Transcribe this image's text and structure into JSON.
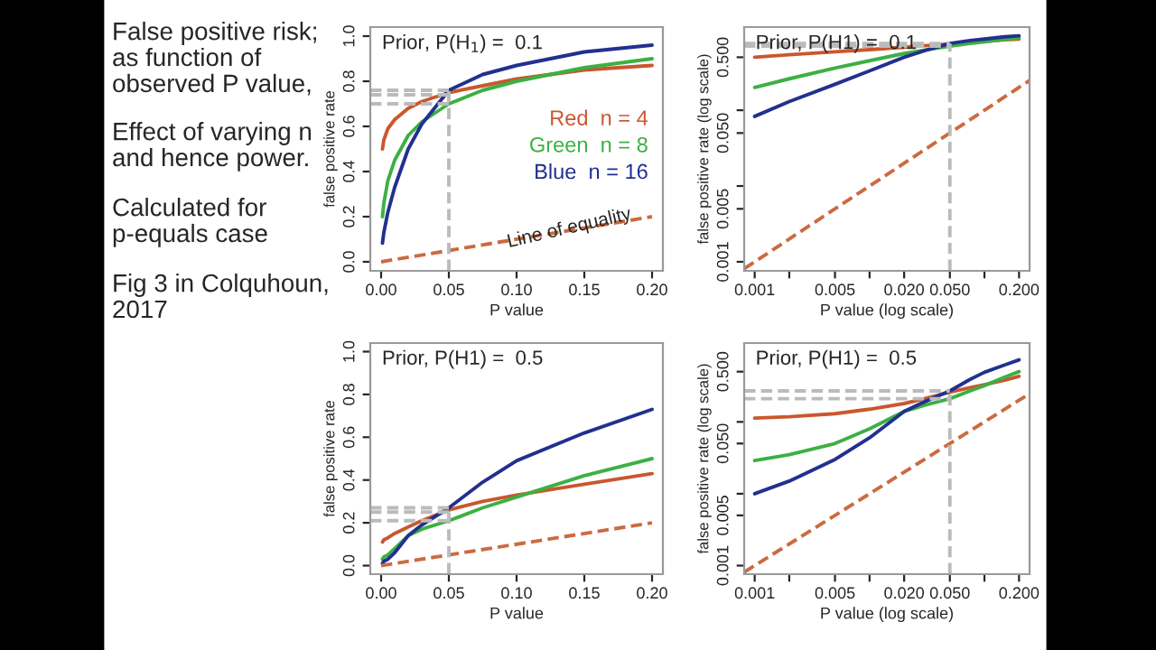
{
  "chart_data": [
    {
      "type": "other",
      "annotations": [
        "False positive risk;\nas function of\nobserved P value,",
        "Effect of varying n\nand hence power.",
        "Calculated for\np-equals case",
        "Fig 3 in Colquhoun,\n2017"
      ]
    },
    {
      "type": "line",
      "title": "Prior, P(H$_{1}$) =  0.1",
      "xlabel": "P value",
      "ylabel": "false positive rate",
      "legend": "center right",
      "xlim": [
        -0.008,
        0.208
      ],
      "ylim": [
        -0.04,
        1.04
      ],
      "xticks": [
        {
          "value": 0,
          "label": "0.00"
        },
        {
          "value": 0.05,
          "label": "0.05"
        },
        {
          "value": 0.1,
          "label": "0.10"
        },
        {
          "value": 0.15,
          "label": "0.15"
        },
        {
          "value": 0.2,
          "label": "0.20"
        }
      ],
      "yticks": [
        {
          "value": 0,
          "label": "0.0"
        },
        0.2,
        0.4,
        0.6,
        0.8,
        {
          "value": 1,
          "label": "1.0"
        }
      ],
      "annotations": [
        "Line of equality"
      ],
      "series": [
        {
          "name": "Red  n = 4",
          "color": "#c9572e",
          "line_style": "solid",
          "x": [
            0.001,
            0.002,
            0.005,
            0.01,
            0.02,
            0.03,
            0.05,
            0.075,
            0.1,
            0.15,
            0.2
          ],
          "values": [
            0.5,
            0.54,
            0.59,
            0.63,
            0.68,
            0.71,
            0.75,
            0.78,
            0.81,
            0.85,
            0.87
          ]
        },
        {
          "name": "Green  n = 8",
          "color": "#3cb043",
          "line_style": "solid",
          "x": [
            0.001,
            0.002,
            0.005,
            0.01,
            0.02,
            0.03,
            0.05,
            0.075,
            0.1,
            0.15,
            0.2
          ],
          "values": [
            0.2,
            0.26,
            0.36,
            0.45,
            0.56,
            0.62,
            0.7,
            0.76,
            0.8,
            0.86,
            0.9
          ]
        },
        {
          "name": "Blue  n = 16",
          "color": "#22308f",
          "line_style": "solid",
          "x": [
            0.001,
            0.002,
            0.005,
            0.01,
            0.02,
            0.03,
            0.05,
            0.075,
            0.1,
            0.15,
            0.2
          ],
          "values": [
            0.083,
            0.13,
            0.22,
            0.33,
            0.5,
            0.61,
            0.76,
            0.83,
            0.87,
            0.93,
            0.96
          ]
        },
        {
          "color": "#cc6a40",
          "line_style": "dashed",
          "x": [
            0,
            0.2
          ],
          "values": [
            0,
            0.2
          ]
        },
        {
          "color": "#bbbbbb",
          "line_style": "dashed",
          "x": [
            -0.008,
            0.05
          ],
          "values": [
            0.76,
            0.76
          ]
        },
        {
          "color": "#bbbbbb",
          "line_style": "dashed",
          "x": [
            -0.008,
            0.05
          ],
          "values": [
            0.74,
            0.74
          ]
        },
        {
          "color": "#bbbbbb",
          "line_style": "dashed",
          "x": [
            -0.008,
            0.05
          ],
          "values": [
            0.7,
            0.7
          ]
        },
        {
          "color": "#bbbbbb",
          "line_style": "dashed",
          "x": [
            0.05,
            0.05
          ],
          "values": [
            -0.04,
            0.76
          ]
        }
      ]
    },
    {
      "type": "line",
      "title": "Prior, P(H1) =  0.1",
      "xlabel": "P value (log scale)",
      "ylabel": "false positive rate (log scale)",
      "log": "xy",
      "xlim": [
        0.00081,
        0.247
      ],
      "ylim": [
        0.00076,
        1.25
      ],
      "xticks": [
        {
          "value": 0.001,
          "label": "0.001"
        },
        {
          "value": 0.002,
          "label": null
        },
        {
          "value": 0.005,
          "label": "0.005"
        },
        {
          "value": 0.01,
          "label": null
        },
        {
          "value": 0.02,
          "label": "0.020"
        },
        {
          "value": 0.05,
          "label": "0.050"
        },
        {
          "value": 0.1,
          "label": null
        },
        {
          "value": 0.2,
          "label": "0.200"
        }
      ],
      "yticks": [
        {
          "value": 0.001,
          "label": "0.001"
        },
        {
          "value": 0.005,
          "label": "0.005"
        },
        {
          "value": 0.01,
          "label": null
        },
        {
          "value": 0.05,
          "label": "0.050"
        },
        {
          "value": 0.1,
          "label": null
        },
        {
          "value": 0.5,
          "label": "0.500"
        }
      ],
      "series": [
        {
          "color": "#c9572e",
          "line_style": "solid",
          "x": [
            0.001,
            0.002,
            0.005,
            0.01,
            0.02,
            0.03,
            0.05,
            0.075,
            0.1,
            0.15,
            0.2
          ],
          "values": [
            0.5,
            0.54,
            0.59,
            0.63,
            0.68,
            0.71,
            0.75,
            0.78,
            0.81,
            0.85,
            0.87
          ]
        },
        {
          "color": "#3cb043",
          "line_style": "solid",
          "x": [
            0.001,
            0.002,
            0.005,
            0.01,
            0.02,
            0.03,
            0.05,
            0.075,
            0.1,
            0.15,
            0.2
          ],
          "values": [
            0.2,
            0.26,
            0.36,
            0.45,
            0.56,
            0.62,
            0.7,
            0.76,
            0.8,
            0.86,
            0.9
          ]
        },
        {
          "color": "#22308f",
          "line_style": "solid",
          "x": [
            0.001,
            0.002,
            0.005,
            0.01,
            0.02,
            0.03,
            0.05,
            0.075,
            0.1,
            0.15,
            0.2
          ],
          "values": [
            0.083,
            0.13,
            0.22,
            0.33,
            0.5,
            0.61,
            0.76,
            0.83,
            0.87,
            0.93,
            0.96
          ]
        },
        {
          "color": "#cc6a40",
          "line_style": "dashed",
          "x": [
            0.00081,
            0.247
          ],
          "values": [
            0.00081,
            0.247
          ]
        },
        {
          "color": "#bbbbbb",
          "line_style": "dashed",
          "x": [
            0.00081,
            0.05
          ],
          "values": [
            0.76,
            0.76
          ]
        },
        {
          "color": "#bbbbbb",
          "line_style": "dashed",
          "x": [
            0.00081,
            0.05
          ],
          "values": [
            0.7,
            0.7
          ]
        },
        {
          "color": "#bbbbbb",
          "line_style": "dashed",
          "x": [
            0.05,
            0.05
          ],
          "values": [
            0.00076,
            0.76
          ]
        }
      ]
    },
    {
      "type": "line",
      "title": "Prior, P(H1) =  0.5",
      "xlabel": "P value",
      "ylabel": "false positive rate",
      "xlim": [
        -0.008,
        0.208
      ],
      "ylim": [
        -0.04,
        1.04
      ],
      "xticks": [
        {
          "value": 0,
          "label": "0.00"
        },
        {
          "value": 0.05,
          "label": "0.05"
        },
        {
          "value": 0.1,
          "label": "0.10"
        },
        {
          "value": 0.15,
          "label": "0.15"
        },
        {
          "value": 0.2,
          "label": "0.20"
        }
      ],
      "yticks": [
        {
          "value": 0,
          "label": "0.0"
        },
        0.2,
        0.4,
        0.6,
        0.8,
        {
          "value": 1,
          "label": "1.0"
        }
      ],
      "series": [
        {
          "color": "#c9572e",
          "line_style": "solid",
          "x": [
            0.001,
            0.002,
            0.005,
            0.01,
            0.02,
            0.03,
            0.05,
            0.075,
            0.1,
            0.15,
            0.2
          ],
          "values": [
            0.11,
            0.12,
            0.13,
            0.15,
            0.18,
            0.21,
            0.26,
            0.3,
            0.33,
            0.38,
            0.43
          ]
        },
        {
          "color": "#3cb043",
          "line_style": "solid",
          "x": [
            0.001,
            0.002,
            0.005,
            0.01,
            0.02,
            0.03,
            0.05,
            0.075,
            0.1,
            0.15,
            0.2
          ],
          "values": [
            0.03,
            0.04,
            0.05,
            0.08,
            0.14,
            0.17,
            0.21,
            0.27,
            0.32,
            0.42,
            0.5
          ]
        },
        {
          "color": "#22308f",
          "line_style": "solid",
          "x": [
            0.001,
            0.002,
            0.005,
            0.01,
            0.02,
            0.03,
            0.05,
            0.075,
            0.1,
            0.15,
            0.2
          ],
          "values": [
            0.01,
            0.02,
            0.03,
            0.06,
            0.14,
            0.19,
            0.27,
            0.39,
            0.49,
            0.62,
            0.73
          ]
        },
        {
          "color": "#cc6a40",
          "line_style": "dashed",
          "x": [
            0,
            0.2
          ],
          "values": [
            0,
            0.2
          ]
        },
        {
          "color": "#bbbbbb",
          "line_style": "dashed",
          "x": [
            -0.008,
            0.05
          ],
          "values": [
            0.27,
            0.27
          ]
        },
        {
          "color": "#bbbbbb",
          "line_style": "dashed",
          "x": [
            -0.008,
            0.05
          ],
          "values": [
            0.25,
            0.25
          ]
        },
        {
          "color": "#bbbbbb",
          "line_style": "dashed",
          "x": [
            -0.008,
            0.05
          ],
          "values": [
            0.21,
            0.21
          ]
        },
        {
          "color": "#bbbbbb",
          "line_style": "dashed",
          "x": [
            0.05,
            0.05
          ],
          "values": [
            -0.04,
            0.27
          ]
        }
      ]
    },
    {
      "type": "line",
      "title": "Prior, P(H1) =  0.5",
      "xlabel": "P value (log scale)",
      "ylabel": "false positive rate (log scale)",
      "log": "xy",
      "xlim": [
        0.00081,
        0.247
      ],
      "ylim": [
        0.00076,
        1.25
      ],
      "xticks": [
        {
          "value": 0.001,
          "label": "0.001"
        },
        {
          "value": 0.002,
          "label": null
        },
        {
          "value": 0.005,
          "label": "0.005"
        },
        {
          "value": 0.01,
          "label": null
        },
        {
          "value": 0.02,
          "label": "0.020"
        },
        {
          "value": 0.05,
          "label": "0.050"
        },
        {
          "value": 0.1,
          "label": null
        },
        {
          "value": 0.2,
          "label": "0.200"
        }
      ],
      "yticks": [
        {
          "value": 0.001,
          "label": "0.001"
        },
        {
          "value": 0.005,
          "label": "0.005"
        },
        {
          "value": 0.01,
          "label": null
        },
        {
          "value": 0.05,
          "label": "0.050"
        },
        {
          "value": 0.1,
          "label": null
        },
        {
          "value": 0.5,
          "label": "0.500"
        }
      ],
      "series": [
        {
          "color": "#c9572e",
          "line_style": "solid",
          "x": [
            0.001,
            0.002,
            0.005,
            0.01,
            0.02,
            0.03,
            0.05,
            0.075,
            0.1,
            0.15,
            0.2
          ],
          "values": [
            0.113,
            0.118,
            0.13,
            0.15,
            0.18,
            0.21,
            0.26,
            0.3,
            0.33,
            0.38,
            0.43
          ]
        },
        {
          "color": "#3cb043",
          "line_style": "solid",
          "x": [
            0.001,
            0.002,
            0.005,
            0.01,
            0.02,
            0.03,
            0.05,
            0.075,
            0.1,
            0.15,
            0.2
          ],
          "values": [
            0.029,
            0.035,
            0.05,
            0.08,
            0.14,
            0.17,
            0.21,
            0.27,
            0.32,
            0.42,
            0.5
          ]
        },
        {
          "color": "#22308f",
          "line_style": "solid",
          "x": [
            0.001,
            0.002,
            0.005,
            0.01,
            0.02,
            0.03,
            0.05,
            0.075,
            0.1,
            0.15,
            0.2
          ],
          "values": [
            0.01,
            0.015,
            0.03,
            0.06,
            0.14,
            0.19,
            0.27,
            0.39,
            0.49,
            0.62,
            0.73
          ]
        },
        {
          "color": "#cc6a40",
          "line_style": "dashed",
          "x": [
            0.00081,
            0.247
          ],
          "values": [
            0.00081,
            0.247
          ]
        },
        {
          "color": "#bbbbbb",
          "line_style": "dashed",
          "x": [
            0.00081,
            0.05
          ],
          "values": [
            0.27,
            0.27
          ]
        },
        {
          "color": "#bbbbbb",
          "line_style": "dashed",
          "x": [
            0.00081,
            0.05
          ],
          "values": [
            0.21,
            0.21
          ]
        },
        {
          "color": "#bbbbbb",
          "line_style": "dashed",
          "x": [
            0.05,
            0.05
          ],
          "values": [
            0.00076,
            0.27
          ]
        }
      ]
    }
  ]
}
